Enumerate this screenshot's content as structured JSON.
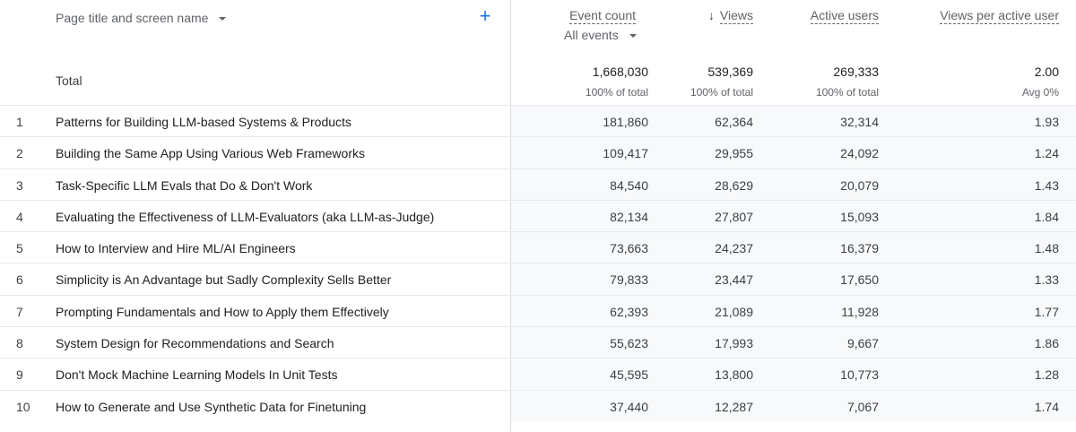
{
  "dimension": {
    "label": "Page title and screen name"
  },
  "columns": {
    "event_count": "Event count",
    "event_filter": "All events",
    "views": "Views",
    "active_users": "Active users",
    "views_per_user": "Views per active user"
  },
  "totals": {
    "label": "Total",
    "event_count": "1,668,030",
    "event_count_sub": "100% of total",
    "views": "539,369",
    "views_sub": "100% of total",
    "active_users": "269,333",
    "active_users_sub": "100% of total",
    "views_per_user": "2.00",
    "views_per_user_sub": "Avg 0%"
  },
  "rows": [
    {
      "idx": "1",
      "title": "Patterns for Building LLM-based Systems & Products",
      "event_count": "181,860",
      "views": "62,364",
      "active_users": "32,314",
      "vpu": "1.93"
    },
    {
      "idx": "2",
      "title": "Building the Same App Using Various Web Frameworks",
      "event_count": "109,417",
      "views": "29,955",
      "active_users": "24,092",
      "vpu": "1.24"
    },
    {
      "idx": "3",
      "title": "Task-Specific LLM Evals that Do & Don't Work",
      "event_count": "84,540",
      "views": "28,629",
      "active_users": "20,079",
      "vpu": "1.43"
    },
    {
      "idx": "4",
      "title": "Evaluating the Effectiveness of LLM-Evaluators (aka LLM-as-Judge)",
      "event_count": "82,134",
      "views": "27,807",
      "active_users": "15,093",
      "vpu": "1.84"
    },
    {
      "idx": "5",
      "title": "How to Interview and Hire ML/AI Engineers",
      "event_count": "73,663",
      "views": "24,237",
      "active_users": "16,379",
      "vpu": "1.48"
    },
    {
      "idx": "6",
      "title": "Simplicity is An Advantage but Sadly Complexity Sells Better",
      "event_count": "79,833",
      "views": "23,447",
      "active_users": "17,650",
      "vpu": "1.33"
    },
    {
      "idx": "7",
      "title": "Prompting Fundamentals and How to Apply them Effectively",
      "event_count": "62,393",
      "views": "21,089",
      "active_users": "11,928",
      "vpu": "1.77"
    },
    {
      "idx": "8",
      "title": "System Design for Recommendations and Search",
      "event_count": "55,623",
      "views": "17,993",
      "active_users": "9,667",
      "vpu": "1.86"
    },
    {
      "idx": "9",
      "title": "Don't Mock Machine Learning Models In Unit Tests",
      "event_count": "45,595",
      "views": "13,800",
      "active_users": "10,773",
      "vpu": "1.28"
    },
    {
      "idx": "10",
      "title": "How to Generate and Use Synthetic Data for Finetuning",
      "event_count": "37,440",
      "views": "12,287",
      "active_users": "7,067",
      "vpu": "1.74"
    }
  ],
  "icons": {
    "add": "plus-icon",
    "sort": "arrow-down-icon",
    "dropdown": "caret-down-icon"
  },
  "colors": {
    "accent": "#1a73e8",
    "metric_bg": "#f8f9fa",
    "divider": "#dadce0"
  }
}
